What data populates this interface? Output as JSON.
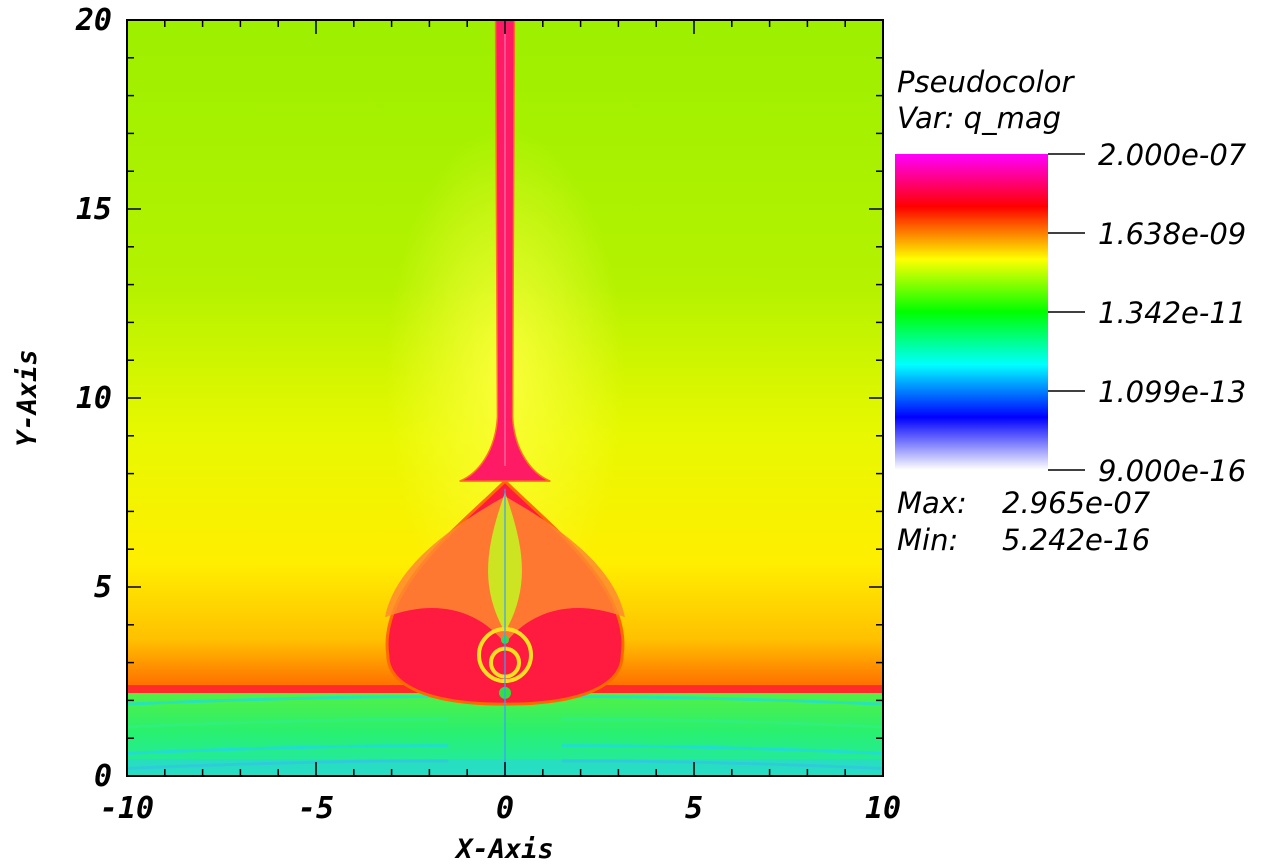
{
  "chart_data": {
    "type": "heatmap",
    "plot_type": "Pseudocolor",
    "variable_label": "Var: q_mag",
    "xlabel": "X-Axis",
    "ylabel": "Y-Axis",
    "xlim": [
      -10,
      10
    ],
    "ylim": [
      0,
      20
    ],
    "x_ticks": [
      -10,
      -5,
      0,
      5,
      10
    ],
    "y_ticks": [
      0,
      5,
      10,
      15,
      20
    ],
    "x_tick_labels": [
      "-10",
      "-5",
      "0",
      "5",
      "10"
    ],
    "y_tick_labels": [
      "0",
      "5",
      "10",
      "15",
      "20"
    ],
    "colorbar": {
      "scale": "log",
      "labels": [
        "2.000e-07",
        "1.638e-09",
        "1.342e-11",
        "1.099e-13",
        "9.000e-16"
      ],
      "values": [
        2e-07,
        1.638e-09,
        1.342e-11,
        1.099e-13,
        9e-16
      ],
      "colors_top_to_bottom": [
        "#ff00ff",
        "#ff0000",
        "#ffff00",
        "#00ff00",
        "#00ffff",
        "#0000ff",
        "#ffffff"
      ]
    },
    "max_label": "Max:",
    "max_value": "2.965e-07",
    "min_label": "Min:",
    "min_value": "5.242e-16",
    "field_features": [
      {
        "name": "background",
        "color": "#a6f000"
      },
      {
        "name": "jet",
        "x_center": 0,
        "y_from": 7.8,
        "y_to": 20,
        "color": "#ff1a66"
      },
      {
        "name": "bulb",
        "x_center": 0,
        "y_from": 1.9,
        "y_to": 7.8,
        "x_half_width": 3.1,
        "color": "#ff1a40"
      },
      {
        "name": "bottom-layer",
        "y_from": 0,
        "y_to": 2.3,
        "color": "#30f060"
      }
    ]
  }
}
